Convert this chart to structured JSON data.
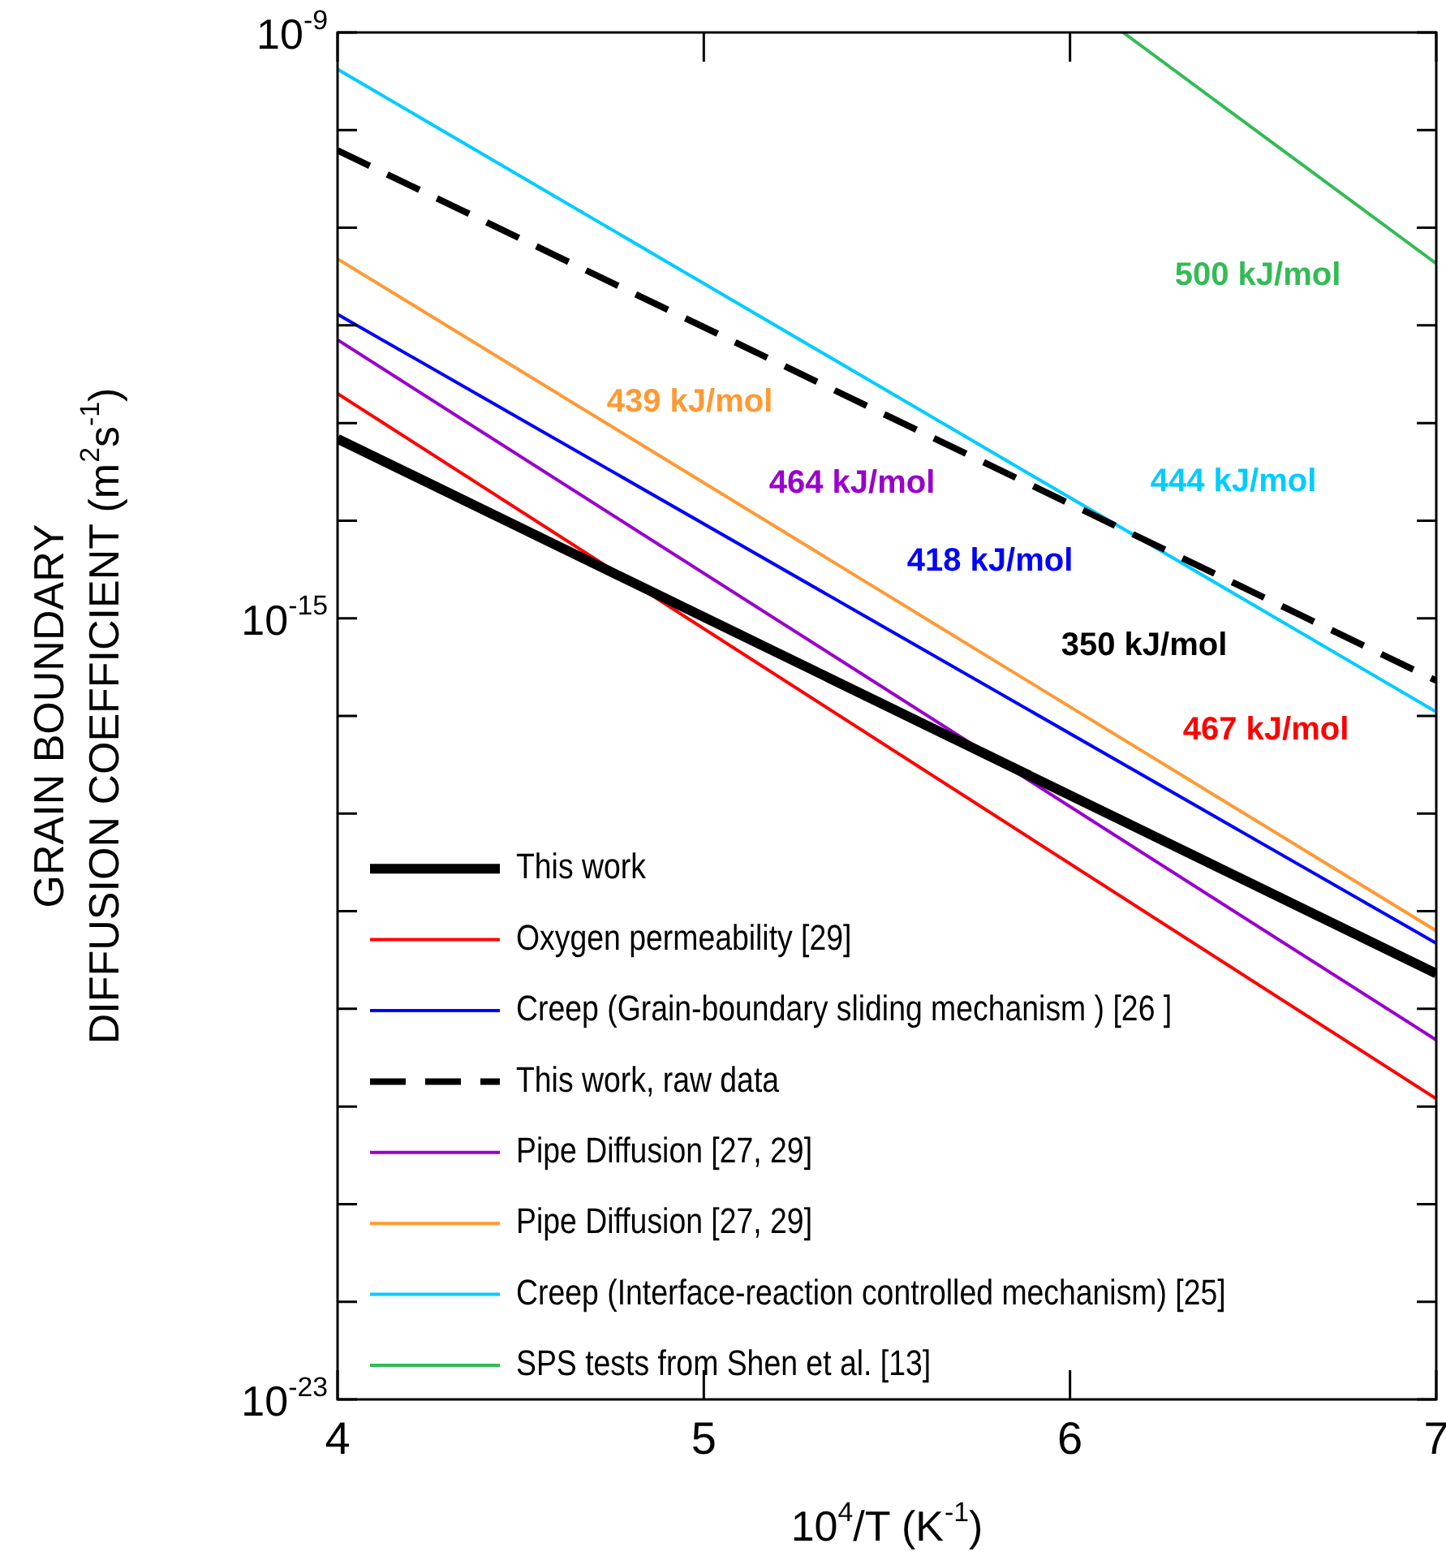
{
  "chart_data": {
    "type": "line",
    "xlabel": "10$^{4}$/T (K$^{-1}$)",
    "ylabel": "GRAIN BOUNDARY\nDIFFUSION COEFFICIENT (m$^{2}$s$^{-1}$)",
    "log": "y",
    "grid": false,
    "legend": "bottom left",
    "marker": "none",
    "xlim": [
      4,
      7
    ],
    "xticks": [
      4,
      5,
      6,
      7
    ],
    "ylim": [
      1e-23,
      1e-09
    ],
    "yticks": [
      {
        "value": 1e-23,
        "label": "10$^{-23}$"
      },
      {
        "value": 1e-22,
        "label": null
      },
      {
        "value": 1e-21,
        "label": null
      },
      {
        "value": 1e-20,
        "label": null
      },
      {
        "value": 1e-19,
        "label": null
      },
      {
        "value": 1e-18,
        "label": null
      },
      {
        "value": 1e-17,
        "label": null
      },
      {
        "value": 1e-16,
        "label": null
      },
      {
        "value": 1e-15,
        "label": "10$^{-15}$"
      },
      {
        "value": 1e-14,
        "label": null
      },
      {
        "value": 1e-13,
        "label": null
      },
      {
        "value": 1e-12,
        "label": null
      },
      {
        "value": 1e-11,
        "label": null
      },
      {
        "value": 1e-10,
        "label": null
      },
      {
        "value": 1e-09,
        "label": "10$^{-9}$"
      }
    ],
    "series": [
      {
        "name": "This work",
        "color": "#000000",
        "x": [
          4,
          7
        ],
        "values": [
          6.9e-14,
          2.3e-19
        ]
      },
      {
        "name": "Oxygen permeability [29]",
        "color": "#ff0000",
        "x": [
          4,
          7
        ],
        "values": [
          2e-13,
          1.2e-20
        ]
      },
      {
        "name": "Creep (Grain-boundary sliding mechanism ) [26 ]",
        "color": "#0000ff",
        "x": [
          4,
          7
        ],
        "values": [
          1.3e-12,
          4.7e-19
        ]
      },
      {
        "name": "This work, raw data",
        "color": "#000000",
        "line_style": "dashed",
        "x": [
          4,
          7
        ],
        "values": [
          6.2e-11,
          2.3e-16
        ]
      },
      {
        "name": "Pipe Diffusion [27, 29]",
        "color": "#9900cc",
        "x": [
          4,
          7
        ],
        "values": [
          7.1e-13,
          4.8e-20
        ]
      },
      {
        "name": "Pipe Diffusion [27, 29]",
        "color": "#ff9933",
        "x": [
          4,
          7
        ],
        "values": [
          4.8e-12,
          6.3e-19
        ]
      },
      {
        "name": "Creep (Interface-reaction controlled mechanism) [25]",
        "color": "#00ccff",
        "x": [
          4,
          7
        ],
        "values": [
          4.2e-10,
          1.1e-16
        ]
      },
      {
        "name": "SPS tests from Shen et al. [13]",
        "color": "#33bb55",
        "x": [
          6.145,
          7
        ],
        "values": [
          1e-09,
          4.3e-12
        ]
      }
    ],
    "annotations": [
      "350 kJ/mol",
      "467 kJ/mol",
      "418 kJ/mol",
      "464 kJ/mol",
      "439 kJ/mol",
      "444 kJ/mol",
      "500 kJ/mol"
    ]
  }
}
